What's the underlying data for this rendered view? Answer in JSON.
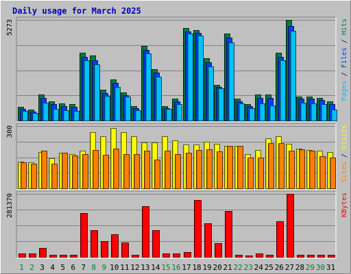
{
  "chart_data": {
    "type": "bar",
    "title": "Daily usage for March 2025",
    "days": [
      "1",
      "2",
      "3",
      "4",
      "5",
      "6",
      "7",
      "8",
      "9",
      "10",
      "11",
      "12",
      "13",
      "14",
      "15",
      "16",
      "17",
      "18",
      "19",
      "20",
      "21",
      "22",
      "23",
      "24",
      "25",
      "26",
      "27",
      "28",
      "29",
      "30",
      "31"
    ],
    "weekend_days": [
      "1",
      "2",
      "8",
      "9",
      "15",
      "16",
      "22",
      "23",
      "29",
      "30"
    ],
    "panels": [
      {
        "id": "hits",
        "max_label": "5273",
        "ymax": 5273,
        "grid_values": [
          1318,
          2636,
          3955
        ],
        "right_label": [
          {
            "text": "Pages",
            "color": "#00c0ff"
          },
          {
            "text": " / ",
            "color": "#000080"
          },
          {
            "text": "Files",
            "color": "#0040ff"
          },
          {
            "text": " / ",
            "color": "#000080"
          },
          {
            "text": "Hits",
            "color": "#008040"
          }
        ],
        "series": [
          {
            "name": "Hits",
            "color": "#008040",
            "values": [
              720,
              560,
              1380,
              1000,
              880,
              850,
              3550,
              3400,
              1620,
              2160,
              1470,
              740,
              3900,
              2700,
              740,
              1150,
              4850,
              4750,
              3250,
              1850,
              4550,
              1150,
              850,
              1380,
              1380,
              3550,
              5273,
              1270,
              1270,
              1200,
              1000
            ]
          },
          {
            "name": "Files",
            "color": "#0040ff",
            "values": [
              600,
              470,
              1200,
              860,
              750,
              730,
              3350,
              3150,
              1450,
              1960,
              1320,
              640,
              3700,
              2500,
              640,
              1000,
              4650,
              4600,
              3050,
              1740,
              4350,
              1000,
              740,
              1200,
              1200,
              3350,
              4950,
              1130,
              1130,
              1060,
              860
            ]
          },
          {
            "name": "Pages",
            "color": "#00c0ff",
            "values": [
              500,
              400,
              950,
              600,
              550,
              520,
              3150,
              2950,
              1300,
              1760,
              1250,
              550,
              3500,
              2300,
              600,
              870,
              4550,
              4450,
              2850,
              1700,
              4100,
              900,
              650,
              900,
              800,
              3150,
              4700,
              950,
              900,
              850,
              560
            ]
          }
        ]
      },
      {
        "id": "visits",
        "max_label": "300",
        "ymax": 300,
        "grid_values": [
          75,
          150,
          225
        ],
        "right_label": [
          {
            "text": "Sites",
            "color": "#ff8000"
          },
          {
            "text": " / ",
            "color": "#000080"
          },
          {
            "text": "Visits",
            "color": "#ffff00"
          }
        ],
        "series": [
          {
            "name": "Visits",
            "color": "#ffff00",
            "values": [
              130,
              125,
              175,
              145,
              170,
              165,
              182,
              270,
              250,
              290,
              270,
              250,
              220,
              220,
              250,
              232,
              212,
              212,
              225,
              215,
              205,
              205,
              165,
              185,
              240,
              250,
              215,
              190,
              185,
              180,
              175
            ]
          },
          {
            "name": "Sites",
            "color": "#ff8000",
            "values": [
              125,
              120,
              182,
              118,
              172,
              158,
              165,
              185,
              160,
              190,
              165,
              165,
              180,
              140,
              180,
              165,
              173,
              185,
              187,
              178,
              205,
              205,
              150,
              150,
              218,
              218,
              180,
              188,
              182,
              155,
              150
            ]
          }
        ]
      },
      {
        "id": "kbytes",
        "max_label": "281370",
        "ymax": 281370,
        "grid_values": [
          70343,
          140685,
          211028
        ],
        "right_label": [
          {
            "text": "KBytes",
            "color": "#ff0000"
          }
        ],
        "series": [
          {
            "name": "KBytes",
            "color": "#ff0000",
            "values": [
              15000,
              15000,
              40000,
              10000,
              10000,
              10000,
              195000,
              120000,
              70000,
              100000,
              65000,
              10000,
              225000,
              120000,
              15000,
              15000,
              20000,
              255000,
              150000,
              60000,
              205000,
              8000,
              5000,
              15000,
              10000,
              160000,
              281370,
              10000,
              10000,
              10000,
              8000
            ]
          }
        ]
      }
    ]
  }
}
